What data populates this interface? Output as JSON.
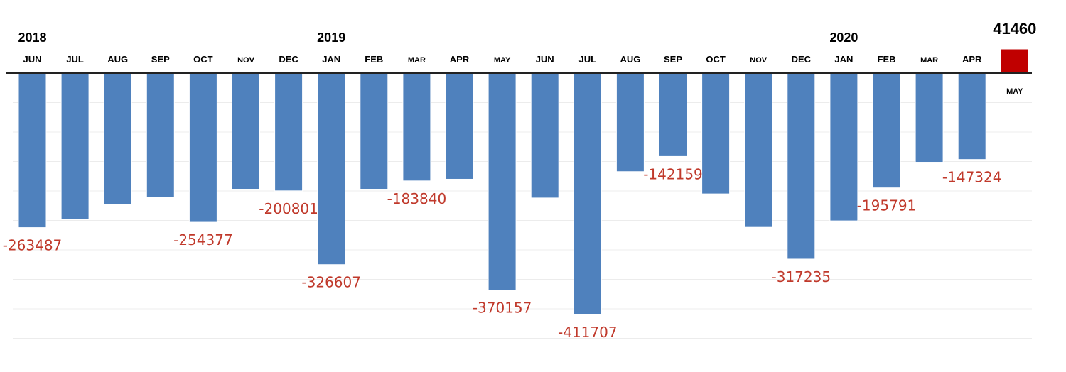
{
  "chart_data": {
    "type": "bar",
    "years": [
      {
        "label": "2018",
        "index": 0
      },
      {
        "label": "2019",
        "index": 7
      },
      {
        "label": "2020",
        "index": 19
      }
    ],
    "categories": [
      "JUN",
      "JUL",
      "AUG",
      "SEP",
      "OCT",
      "NOV",
      "DEC",
      "JAN",
      "FEB",
      "MAR",
      "APR",
      "MAY",
      "JUN",
      "JUL",
      "AUG",
      "SEP",
      "OCT",
      "NOV",
      "DEC",
      "JAN",
      "FEB",
      "MAR",
      "APR",
      "MAY"
    ],
    "values": [
      -263487,
      -250000,
      -224000,
      -212000,
      -254377,
      -198000,
      -200801,
      -326607,
      -198000,
      -183840,
      -181000,
      -370157,
      -213000,
      -411707,
      -168000,
      -142159,
      -206000,
      -263000,
      -317235,
      -252000,
      -195791,
      -152000,
      -147324,
      41460
    ],
    "value_labels": [
      "-263487",
      "",
      "",
      "",
      "-254377",
      "",
      "-200801",
      "-326607",
      "",
      "-183840",
      "",
      "-370157",
      "",
      "-411707",
      "",
      "-142159",
      "",
      "",
      "-317235",
      "",
      "-195791",
      "",
      "-147324",
      "41460"
    ],
    "ylim": [
      -450000,
      41460
    ],
    "colors": {
      "negative": "#4f81bd",
      "positive": "#c00000",
      "label": "#c0392b"
    }
  }
}
